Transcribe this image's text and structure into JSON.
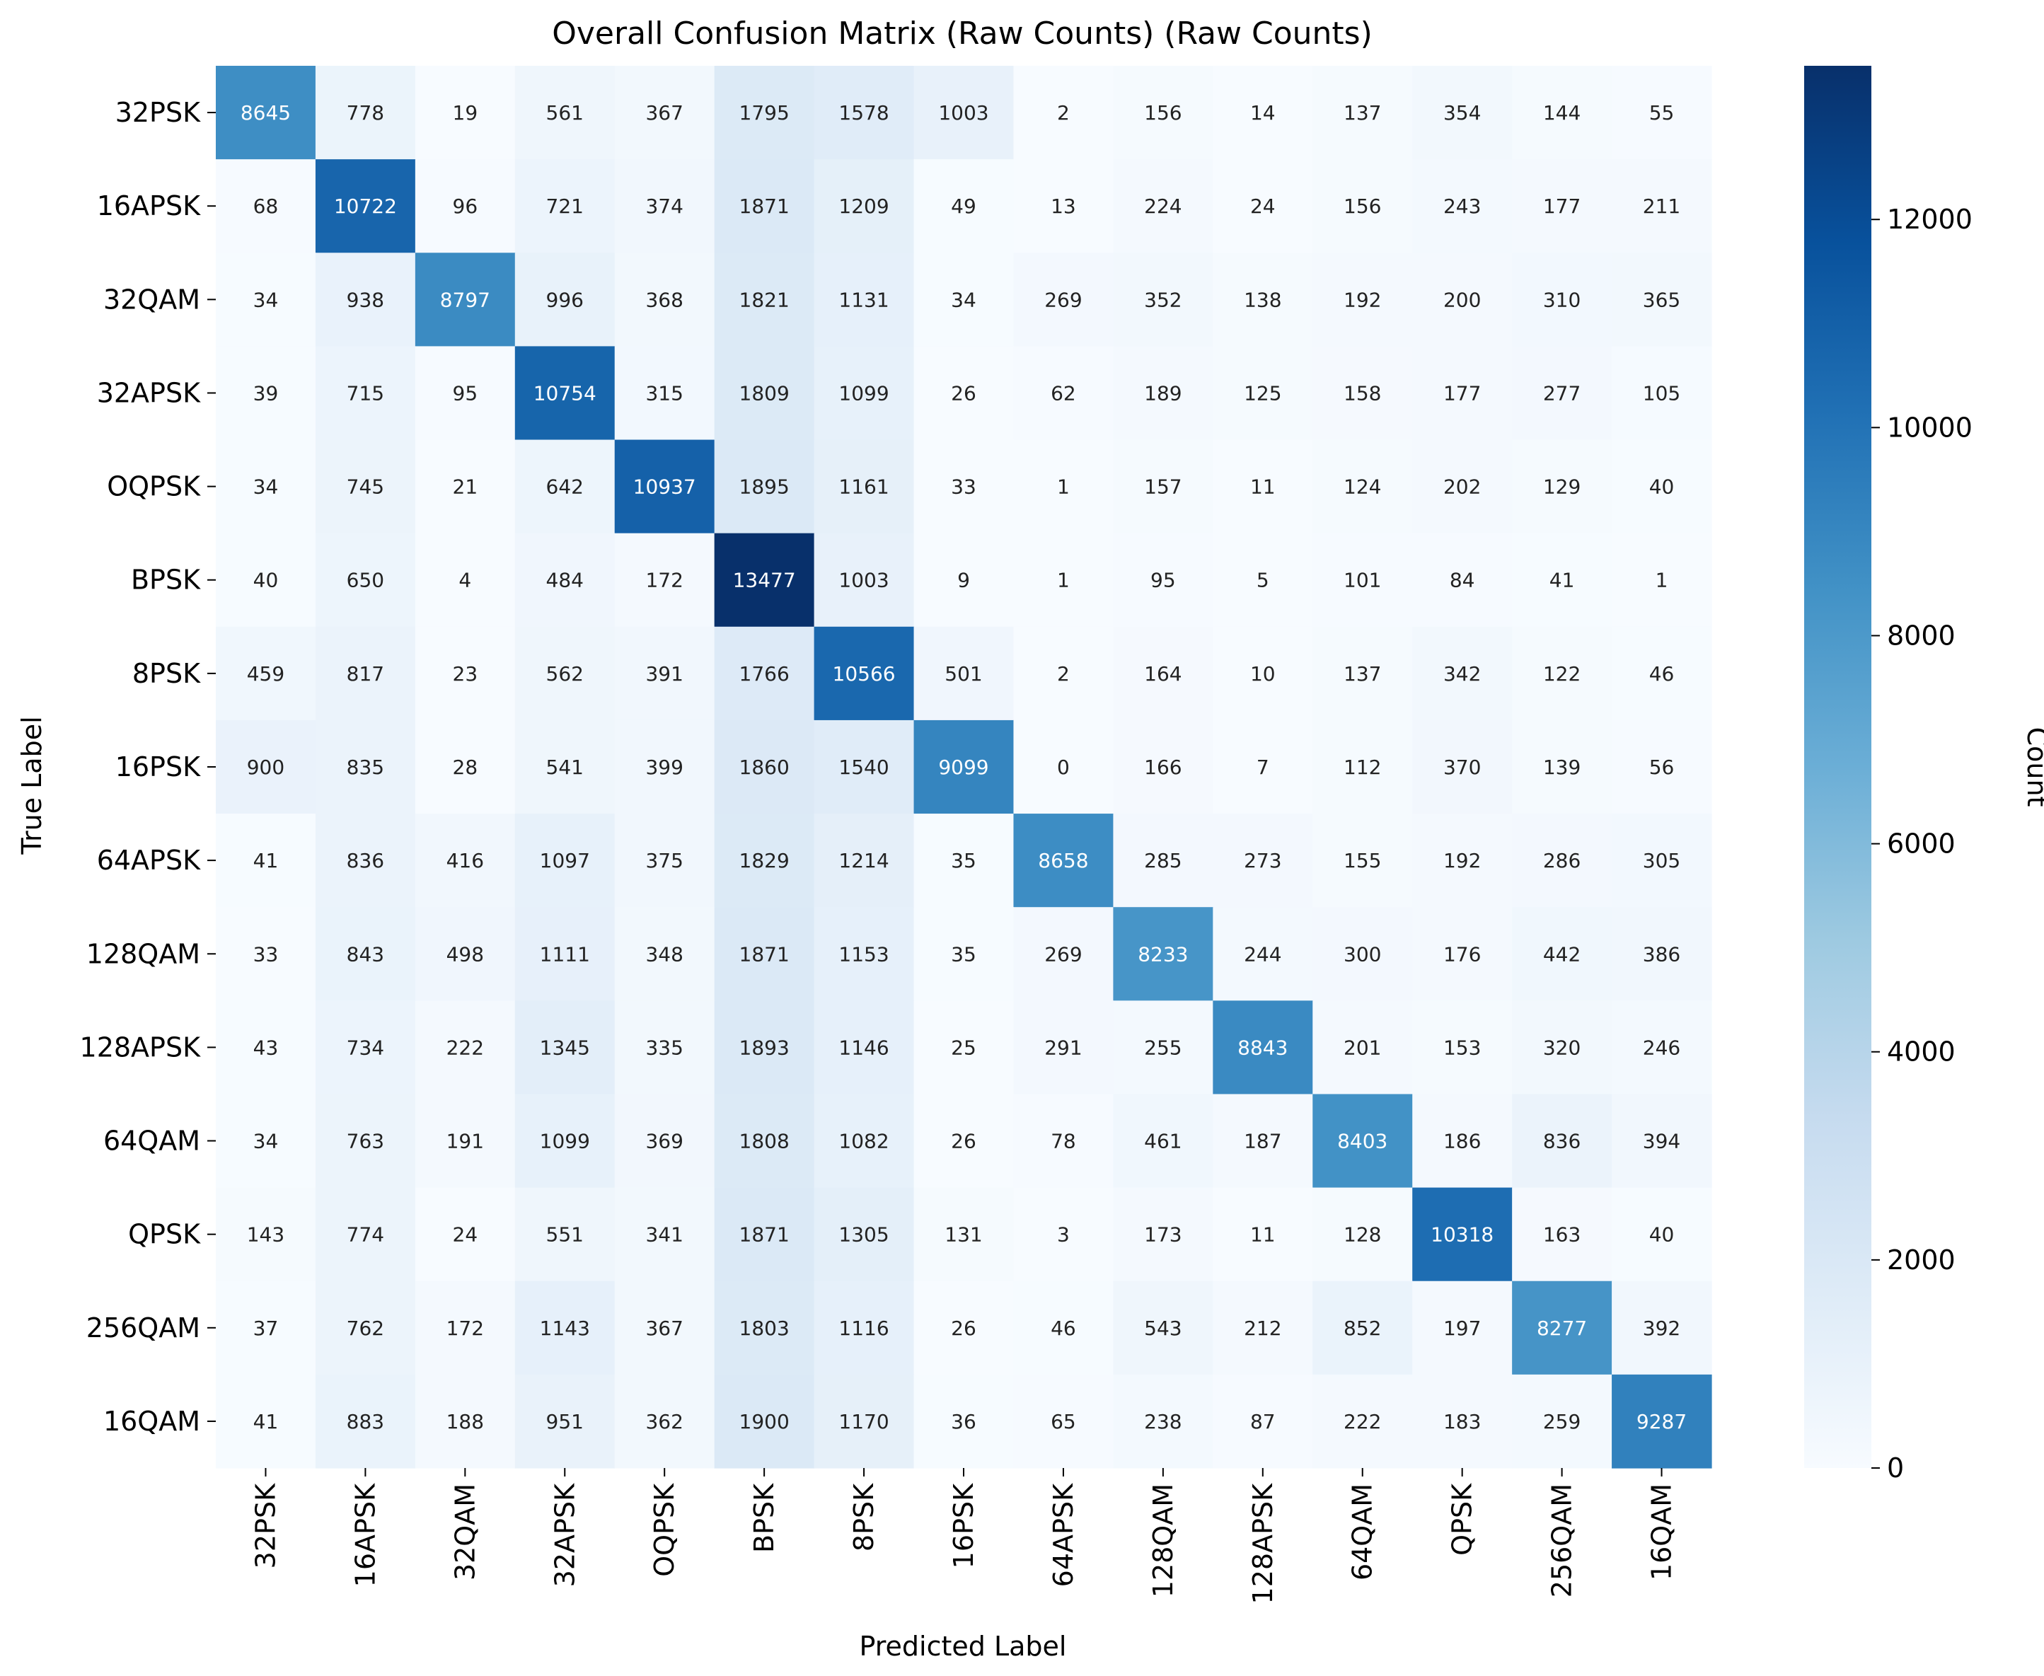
{
  "chart_data": {
    "type": "heatmap",
    "title": "Overall Confusion Matrix (Raw Counts) (Raw Counts)",
    "xlabel": "Predicted Label",
    "ylabel": "True Label",
    "colorbar_label": "Count",
    "colormap": "Blues",
    "vmin": 0,
    "vmax": 13477,
    "colorbar_ticks": [
      0,
      2000,
      4000,
      6000,
      8000,
      10000,
      12000
    ],
    "row_labels": [
      "32PSK",
      "16APSK",
      "32QAM",
      "32APSK",
      "OQPSK",
      "BPSK",
      "8PSK",
      "16PSK",
      "64APSK",
      "128QAM",
      "128APSK",
      "64QAM",
      "QPSK",
      "256QAM",
      "16QAM"
    ],
    "col_labels": [
      "32PSK",
      "16APSK",
      "32QAM",
      "32APSK",
      "OQPSK",
      "BPSK",
      "8PSK",
      "16PSK",
      "64APSK",
      "128QAM",
      "128APSK",
      "64QAM",
      "QPSK",
      "256QAM",
      "16QAM"
    ],
    "values": [
      [
        8645,
        778,
        19,
        561,
        367,
        1795,
        1578,
        1003,
        2,
        156,
        14,
        137,
        354,
        144,
        55
      ],
      [
        68,
        10722,
        96,
        721,
        374,
        1871,
        1209,
        49,
        13,
        224,
        24,
        156,
        243,
        177,
        211
      ],
      [
        34,
        938,
        8797,
        996,
        368,
        1821,
        1131,
        34,
        269,
        352,
        138,
        192,
        200,
        310,
        365
      ],
      [
        39,
        715,
        95,
        10754,
        315,
        1809,
        1099,
        26,
        62,
        189,
        125,
        158,
        177,
        277,
        105
      ],
      [
        34,
        745,
        21,
        642,
        10937,
        1895,
        1161,
        33,
        1,
        157,
        11,
        124,
        202,
        129,
        40
      ],
      [
        40,
        650,
        4,
        484,
        172,
        13477,
        1003,
        9,
        1,
        95,
        5,
        101,
        84,
        41,
        1
      ],
      [
        459,
        817,
        23,
        562,
        391,
        1766,
        10566,
        501,
        2,
        164,
        10,
        137,
        342,
        122,
        46
      ],
      [
        900,
        835,
        28,
        541,
        399,
        1860,
        1540,
        9099,
        0,
        166,
        7,
        112,
        370,
        139,
        56
      ],
      [
        41,
        836,
        416,
        1097,
        375,
        1829,
        1214,
        35,
        8658,
        285,
        273,
        155,
        192,
        286,
        305
      ],
      [
        33,
        843,
        498,
        1111,
        348,
        1871,
        1153,
        35,
        269,
        8233,
        244,
        300,
        176,
        442,
        386
      ],
      [
        43,
        734,
        222,
        1345,
        335,
        1893,
        1146,
        25,
        291,
        255,
        8843,
        201,
        153,
        320,
        246
      ],
      [
        34,
        763,
        191,
        1099,
        369,
        1808,
        1082,
        26,
        78,
        461,
        187,
        8403,
        186,
        836,
        394
      ],
      [
        143,
        774,
        24,
        551,
        341,
        1871,
        1305,
        131,
        3,
        173,
        11,
        128,
        10318,
        163,
        40
      ],
      [
        37,
        762,
        172,
        1143,
        367,
        1803,
        1116,
        26,
        46,
        543,
        212,
        852,
        197,
        8277,
        392
      ],
      [
        41,
        883,
        188,
        951,
        362,
        1900,
        1170,
        36,
        65,
        238,
        87,
        222,
        183,
        259,
        9287
      ]
    ]
  }
}
